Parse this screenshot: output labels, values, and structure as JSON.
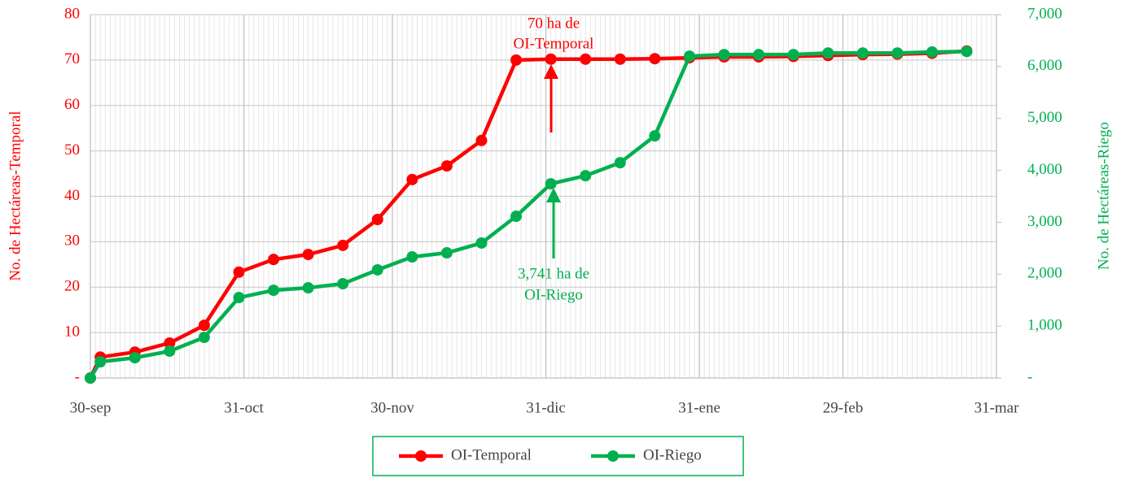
{
  "chart_data": {
    "type": "line",
    "y_label": "No. de Hectáreas-Temporal",
    "y2_label": "No. de Hectáreas-Riego",
    "x": [
      0,
      2,
      9,
      16,
      23,
      30,
      37,
      44,
      51,
      58,
      65,
      72,
      79,
      86,
      93,
      100,
      107,
      114,
      121,
      128,
      135,
      142,
      149,
      156,
      163,
      170,
      177
    ],
    "xlim": [
      0,
      183
    ],
    "xticks": [
      {
        "value": 0,
        "label": "30-sep"
      },
      {
        "value": 31,
        "label": "31-oct"
      },
      {
        "value": 61,
        "label": "30-nov"
      },
      {
        "value": 92,
        "label": "31-dic"
      },
      {
        "value": 123,
        "label": "31-ene"
      },
      {
        "value": 152,
        "label": "29-feb"
      },
      {
        "value": 183,
        "label": "31-mar"
      }
    ],
    "ylim": [
      0,
      80
    ],
    "yticks": [
      {
        "value": 0,
        "label": "-"
      },
      10,
      20,
      30,
      40,
      50,
      60,
      70,
      80
    ],
    "y2lim": [
      0,
      7000
    ],
    "y2ticks": [
      {
        "value": 0,
        "label": "-"
      },
      {
        "value": 1000,
        "label": "1,000"
      },
      {
        "value": 2000,
        "label": "2,000"
      },
      {
        "value": 3000,
        "label": "3,000"
      },
      {
        "value": 4000,
        "label": "4,000"
      },
      {
        "value": 5000,
        "label": "5,000"
      },
      {
        "value": 6000,
        "label": "6,000"
      },
      {
        "value": 7000,
        "label": "7,000"
      }
    ],
    "grid": true,
    "legend": "bottom",
    "series": [
      {
        "name": "OI-Temporal",
        "color": "#ff0000",
        "axis": "y",
        "values": [
          0,
          4.6,
          5.7,
          7.7,
          11.6,
          23.3,
          26.1,
          27.2,
          29.2,
          34.9,
          43.7,
          46.7,
          52.3,
          70.0,
          70.2,
          70.2,
          70.2,
          70.3,
          70.5,
          70.7,
          70.7,
          70.8,
          71.0,
          71.2,
          71.3,
          71.5,
          72.0
        ]
      },
      {
        "name": "OI-Riego",
        "color": "#00b050",
        "axis": "y2",
        "values": [
          0,
          313,
          390,
          517,
          783,
          1550,
          1690,
          1738,
          1816,
          2083,
          2333,
          2411,
          2600,
          3116,
          3741,
          3897,
          4148,
          4664,
          6200,
          6230,
          6230,
          6230,
          6260,
          6260,
          6260,
          6280,
          6290
        ]
      }
    ],
    "annotations": [
      {
        "lines": [
          "70 ha de",
          "OI-Temporal"
        ],
        "color": "#ff0000"
      },
      {
        "lines": [
          "3,741 ha de",
          "OI-Riego"
        ],
        "color": "#00b050"
      }
    ]
  }
}
